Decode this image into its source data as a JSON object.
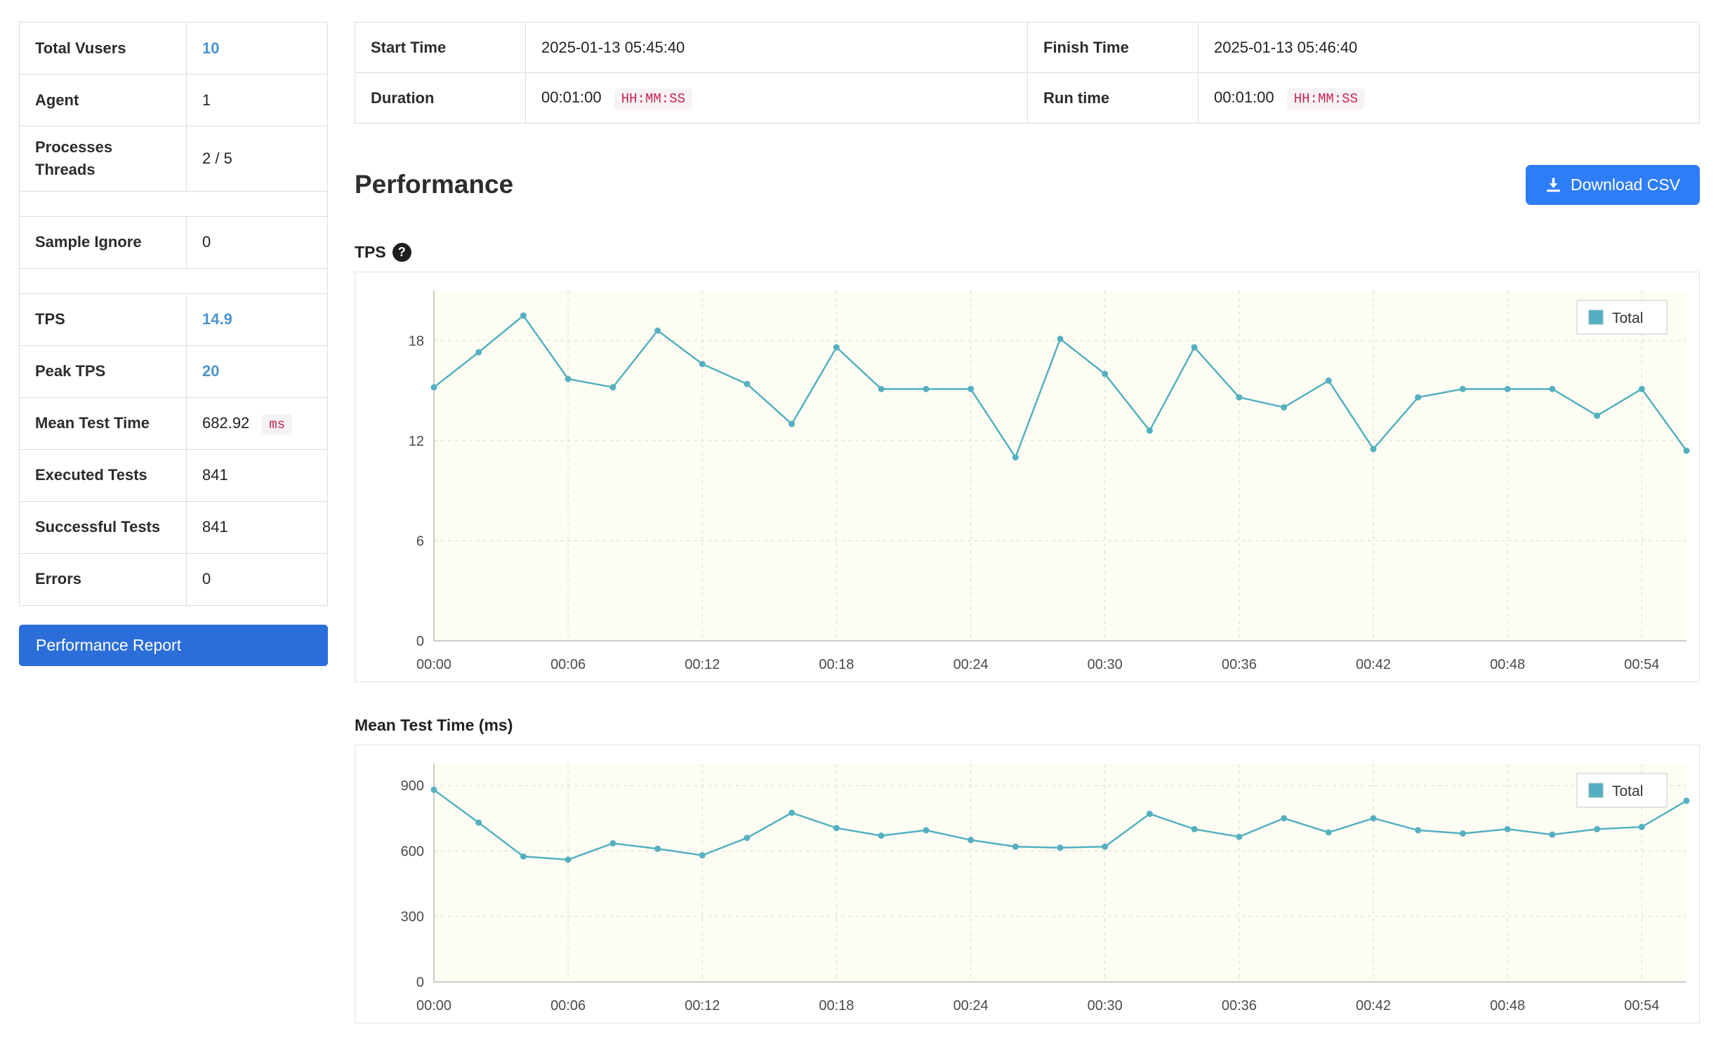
{
  "summary_table": {
    "rows": [
      {
        "label": "Total Vusers",
        "value": "10",
        "highlight": true
      },
      {
        "label": "Agent",
        "value": "1"
      },
      {
        "label": "Processes Threads",
        "value": "2 / 5"
      },
      {
        "separator": true
      },
      {
        "label": "Sample Ignore",
        "value": "0"
      },
      {
        "separator": true
      },
      {
        "label": "TPS",
        "value": "14.9",
        "highlight": true
      },
      {
        "label": "Peak TPS",
        "value": "20",
        "highlight": true
      },
      {
        "label": "Mean Test Time",
        "value": "682.92",
        "badge": "ms"
      },
      {
        "label": "Executed Tests",
        "value": "841"
      },
      {
        "label": "Successful Tests",
        "value": "841"
      },
      {
        "label": "Errors",
        "value": "0"
      }
    ],
    "report_button_label": "Performance Report"
  },
  "info_table": {
    "rows": [
      [
        {
          "label": "Start Time",
          "value": "2025-01-13 05:45:40"
        },
        {
          "label": "Finish Time",
          "value": "2025-01-13 05:46:40"
        }
      ],
      [
        {
          "label": "Duration",
          "value": "00:01:00",
          "badge": "HH:MM:SS"
        },
        {
          "label": "Run time",
          "value": "00:01:00",
          "badge": "HH:MM:SS"
        }
      ]
    ]
  },
  "performance": {
    "title": "Performance",
    "download_button_label": "Download CSV",
    "tps_section_label": "TPS",
    "help_icon_glyph": "?",
    "mtt_section_label": "Mean Test Time (ms)"
  },
  "colors": {
    "accent_blue": "#4b94ce",
    "report_button_blue": "#2b6ed9",
    "csv_button_blue": "#2e7df7",
    "badge_red": "#c7254e",
    "badge_bg": "#f7f2f4",
    "chart_line": "#54b0c1",
    "chart_plot_bg": "#fdfdf3",
    "chart_grid": "#d9d9cf",
    "chart_axis": "#9a9a94"
  },
  "chart_data": [
    {
      "id": "tps",
      "type": "line",
      "title": "TPS",
      "xlabel": "",
      "ylabel": "TPS",
      "x": [
        0,
        2,
        4,
        6,
        8,
        10,
        12,
        14,
        16,
        18,
        20,
        22,
        24,
        26,
        28,
        30,
        32,
        34,
        36,
        38,
        40,
        42,
        44,
        46,
        48,
        50,
        52,
        54,
        56
      ],
      "series": [
        {
          "name": "Total",
          "values": [
            15.2,
            17.3,
            19.5,
            15.7,
            15.2,
            18.6,
            16.6,
            15.4,
            13.0,
            17.6,
            15.1,
            15.1,
            15.1,
            11.0,
            18.1,
            16.0,
            12.6,
            17.6,
            14.6,
            14.0,
            15.6,
            11.5,
            14.6,
            15.1,
            15.1,
            15.1,
            13.5,
            15.1,
            11.4
          ]
        }
      ],
      "xticks": [
        0,
        6,
        12,
        18,
        24,
        30,
        36,
        42,
        48,
        54
      ],
      "xtick_labels": [
        "00:00",
        "00:06",
        "00:12",
        "00:18",
        "00:24",
        "00:30",
        "00:36",
        "00:42",
        "00:48",
        "00:54"
      ],
      "ylim": [
        0,
        21
      ],
      "yticks": [
        0,
        6,
        12,
        18
      ],
      "grid": true,
      "legend_position": "top-right"
    },
    {
      "id": "mean-test-time",
      "type": "line",
      "title": "Mean Test Time (ms)",
      "xlabel": "",
      "ylabel": "ms",
      "x": [
        0,
        2,
        4,
        6,
        8,
        10,
        12,
        14,
        16,
        18,
        20,
        22,
        24,
        26,
        28,
        30,
        32,
        34,
        36,
        38,
        40,
        42,
        44,
        46,
        48,
        50,
        52,
        54,
        56
      ],
      "series": [
        {
          "name": "Total",
          "values": [
            880,
            730,
            575,
            560,
            635,
            610,
            580,
            660,
            775,
            705,
            670,
            695,
            650,
            620,
            615,
            620,
            770,
            700,
            665,
            750,
            685,
            750,
            695,
            680,
            700,
            675,
            700,
            710,
            830
          ]
        }
      ],
      "xticks": [
        0,
        6,
        12,
        18,
        24,
        30,
        36,
        42,
        48,
        54
      ],
      "xtick_labels": [
        "00:00",
        "00:06",
        "00:12",
        "00:18",
        "00:24",
        "00:30",
        "00:36",
        "00:42",
        "00:48",
        "00:54"
      ],
      "ylim": [
        0,
        1000
      ],
      "yticks": [
        0,
        300,
        600,
        900
      ],
      "grid": true,
      "legend_position": "top-right"
    }
  ]
}
